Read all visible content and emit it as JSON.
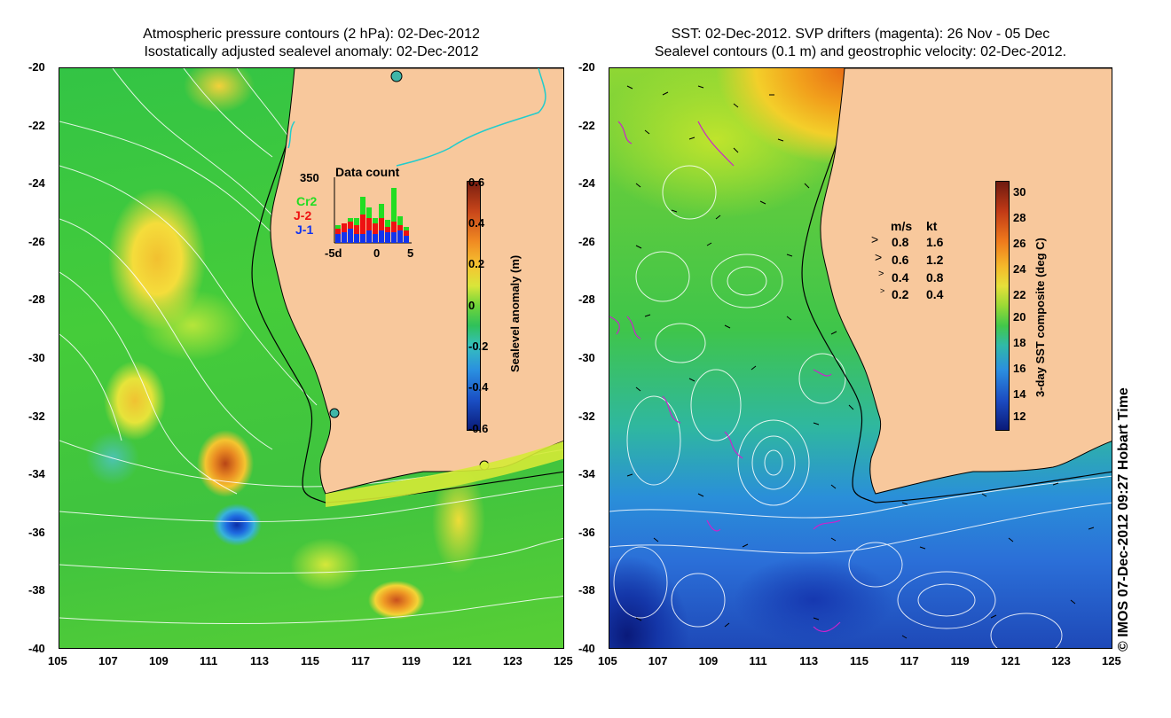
{
  "left_panel": {
    "title_line1": "Atmospheric pressure contours (2 hPa): 02-Dec-2012",
    "title_line2": "Isostatically adjusted sealevel anomaly: 02-Dec-2012",
    "colorbar_label": "Sealevel anomaly (m)",
    "colorbar_ticks": [
      "0.6",
      "0.4",
      "0.2",
      "0",
      "-0.2",
      "-0.4",
      "-0.6"
    ],
    "inset": {
      "title": "Data count",
      "ymax_label": "350",
      "series_labels": [
        {
          "name": "Cr2",
          "color": "#22dd22"
        },
        {
          "name": "J-2",
          "color": "#ee1111"
        },
        {
          "name": "J-1",
          "color": "#1133ee"
        }
      ],
      "x_ticks": [
        "-5d",
        "0",
        "5"
      ]
    }
  },
  "right_panel": {
    "title_line1": "SST: 02-Dec-2012. SVP drifters (magenta): 26 Nov - 05 Dec",
    "title_line2": "Sealevel contours (0.1 m) and geostrophic velocity: 02-Dec-2012.",
    "colorbar_label": "3-day SST composite (deg C)",
    "colorbar_ticks": [
      "30",
      "28",
      "26",
      "24",
      "22",
      "20",
      "18",
      "16",
      "14",
      "12"
    ],
    "velocity_legend": {
      "header_ms": "m/s",
      "header_kt": "kt",
      "rows": [
        {
          "ms": "0.8",
          "kt": "1.6"
        },
        {
          "ms": "0.6",
          "kt": "1.2"
        },
        {
          "ms": "0.4",
          "kt": "0.8"
        },
        {
          "ms": "0.2",
          "kt": "0.4"
        }
      ]
    }
  },
  "axes": {
    "lat_ticks": [
      "-20",
      "-22",
      "-24",
      "-26",
      "-28",
      "-30",
      "-32",
      "-34",
      "-36",
      "-38",
      "-40"
    ],
    "lon_ticks": [
      "105",
      "107",
      "109",
      "111",
      "113",
      "115",
      "117",
      "119",
      "121",
      "123",
      "125"
    ]
  },
  "credit": "© IMOS 07-Dec-2012 09:27 Hobart Time",
  "colors": {
    "land": "#f8c89c",
    "contour": "#ffffff",
    "coast_line": "#000000",
    "drifter": "#cc22cc",
    "river": "#22cccc"
  }
}
